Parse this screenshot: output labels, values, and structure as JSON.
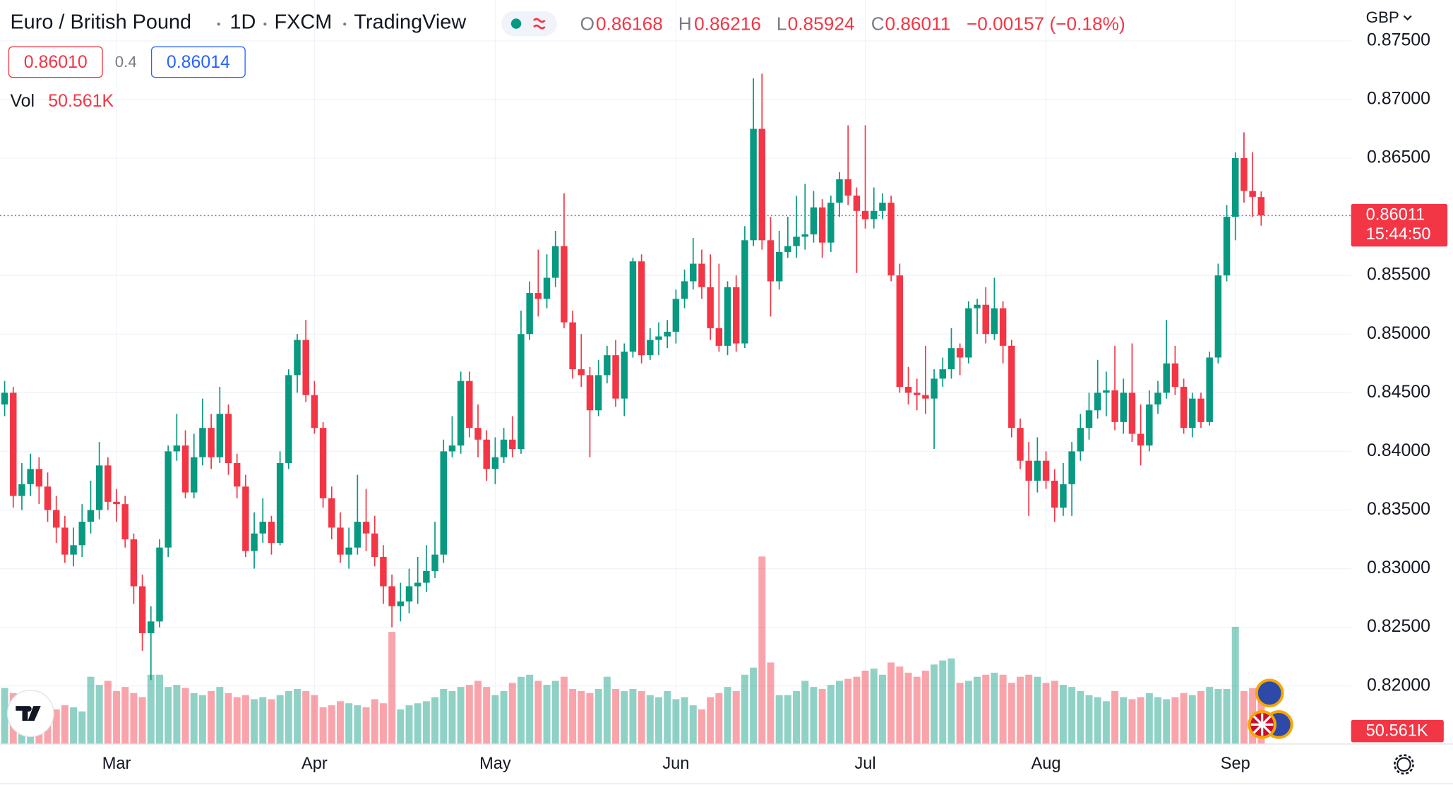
{
  "header": {
    "symbol": "Euro / British Pound",
    "interval": "1D",
    "exchange": "FXCM",
    "source": "TradingView",
    "ohlc_letters": [
      "O",
      "H",
      "L",
      "C"
    ],
    "change": "−0.00157 (−0.18%)",
    "bid": "0.86010",
    "spread": "0.4",
    "ask": "0.86014",
    "currency": "GBP"
  },
  "chart_data": {
    "type": "candlestick",
    "up_color": "#089981",
    "down_color": "#f23645",
    "volume_up_color": "rgba(8,153,129,0.45)",
    "volume_down_color": "rgba(242,54,69,0.45)",
    "grid": true,
    "countdown": "15:44:50",
    "categories": [
      null,
      null,
      null,
      null,
      null,
      null,
      null,
      null,
      null,
      null,
      null,
      null,
      null,
      "Mar",
      null,
      null,
      null,
      null,
      null,
      null,
      null,
      null,
      null,
      null,
      null,
      null,
      null,
      null,
      null,
      null,
      null,
      null,
      null,
      null,
      null,
      null,
      "Apr",
      null,
      null,
      null,
      null,
      null,
      null,
      null,
      null,
      null,
      null,
      null,
      null,
      null,
      null,
      null,
      null,
      null,
      null,
      null,
      null,
      "May",
      null,
      null,
      null,
      null,
      null,
      null,
      null,
      null,
      null,
      null,
      null,
      null,
      null,
      null,
      null,
      null,
      null,
      null,
      null,
      null,
      "Jun",
      null,
      null,
      null,
      null,
      null,
      null,
      null,
      null,
      null,
      null,
      null,
      null,
      null,
      null,
      null,
      null,
      null,
      null,
      null,
      null,
      null,
      "Jul",
      null,
      null,
      null,
      null,
      null,
      null,
      null,
      null,
      null,
      null,
      null,
      null,
      null,
      null,
      null,
      null,
      null,
      null,
      null,
      null,
      "Aug",
      null,
      null,
      null,
      null,
      null,
      null,
      null,
      null,
      null,
      null,
      null,
      null,
      null,
      null,
      null,
      null,
      null,
      null,
      null,
      null,
      null,
      "Sep",
      null,
      null,
      null
    ],
    "open": [
      0.844,
      0.845,
      0.8362,
      0.8372,
      0.8385,
      0.837,
      0.835,
      0.8335,
      0.8312,
      0.832,
      0.834,
      0.835,
      0.8388,
      0.8357,
      0.8355,
      0.8325,
      0.8285,
      0.8245,
      0.8255,
      0.8318,
      0.84,
      0.8405,
      0.8365,
      0.8395,
      0.842,
      0.8395,
      0.8432,
      0.839,
      0.837,
      0.8315,
      0.833,
      0.834,
      0.8322,
      0.839,
      0.8465,
      0.8495,
      0.8448,
      0.842,
      0.836,
      0.8335,
      0.8312,
      0.8318,
      0.834,
      0.833,
      0.831,
      0.8285,
      0.8268,
      0.8272,
      0.8285,
      0.8288,
      0.8298,
      0.8312,
      0.84,
      0.8405,
      0.846,
      0.842,
      0.841,
      0.8385,
      0.8395,
      0.841,
      0.8402,
      0.85,
      0.8535,
      0.853,
      0.8548,
      0.8575,
      0.851,
      0.847,
      0.8465,
      0.8435,
      0.8465,
      0.8482,
      0.8445,
      0.8485,
      0.8562,
      0.8482,
      0.8495,
      0.8498,
      0.8502,
      0.853,
      0.8545,
      0.856,
      0.854,
      0.8505,
      0.849,
      0.854,
      0.8492,
      0.858,
      0.8675,
      0.858,
      0.8545,
      0.857,
      0.8575,
      0.8583,
      0.8585,
      0.8608,
      0.8578,
      0.8612,
      0.8632,
      0.8618,
      0.8605,
      0.8598,
      0.8605,
      0.8612,
      0.855,
      0.8455,
      0.845,
      0.8448,
      0.8445,
      0.8462,
      0.847,
      0.8488,
      0.848,
      0.8522,
      0.8525,
      0.85,
      0.8522,
      0.849,
      0.842,
      0.8392,
      0.8375,
      0.8392,
      0.8375,
      0.8352,
      0.8372,
      0.84,
      0.842,
      0.8435,
      0.845,
      0.8452,
      0.8425,
      0.845,
      0.8415,
      0.8405,
      0.844,
      0.845,
      0.8475,
      0.8455,
      0.842,
      0.8445,
      0.8425,
      0.848,
      0.855,
      0.86,
      0.865,
      0.8622,
      0.86168
    ],
    "high": [
      0.846,
      0.8455,
      0.839,
      0.8398,
      0.8395,
      0.8382,
      0.8362,
      0.8345,
      0.8335,
      0.8355,
      0.8375,
      0.8408,
      0.8395,
      0.8368,
      0.8362,
      0.833,
      0.8295,
      0.8268,
      0.8325,
      0.8405,
      0.8432,
      0.8418,
      0.8415,
      0.8445,
      0.8432,
      0.8455,
      0.844,
      0.8398,
      0.838,
      0.8348,
      0.836,
      0.8345,
      0.84,
      0.847,
      0.85,
      0.8512,
      0.846,
      0.8425,
      0.837,
      0.8348,
      0.8335,
      0.838,
      0.8368,
      0.8345,
      0.832,
      0.8295,
      0.8288,
      0.83,
      0.831,
      0.832,
      0.834,
      0.841,
      0.843,
      0.8468,
      0.8468,
      0.844,
      0.8418,
      0.8412,
      0.842,
      0.843,
      0.852,
      0.8545,
      0.8572,
      0.8568,
      0.8588,
      0.862,
      0.852,
      0.85,
      0.8472,
      0.8478,
      0.849,
      0.8495,
      0.8492,
      0.8565,
      0.8568,
      0.8505,
      0.851,
      0.8512,
      0.8538,
      0.8555,
      0.8582,
      0.8572,
      0.8568,
      0.856,
      0.8545,
      0.855,
      0.8592,
      0.8718,
      0.8722,
      0.86,
      0.8588,
      0.86,
      0.8618,
      0.8628,
      0.8622,
      0.8615,
      0.8618,
      0.8638,
      0.8678,
      0.8625,
      0.8678,
      0.8625,
      0.862,
      0.8618,
      0.856,
      0.8472,
      0.8462,
      0.849,
      0.847,
      0.848,
      0.8505,
      0.8492,
      0.8528,
      0.853,
      0.854,
      0.8548,
      0.8528,
      0.8495,
      0.8428,
      0.8408,
      0.8412,
      0.84,
      0.8385,
      0.839,
      0.8408,
      0.8432,
      0.845,
      0.8478,
      0.8468,
      0.849,
      0.8462,
      0.8492,
      0.844,
      0.8452,
      0.846,
      0.8512,
      0.849,
      0.8462,
      0.845,
      0.845,
      0.8485,
      0.856,
      0.861,
      0.8655,
      0.8672,
      0.8655,
      0.86216
    ],
    "low": [
      0.843,
      0.8352,
      0.835,
      0.8362,
      0.8355,
      0.834,
      0.8322,
      0.8305,
      0.8302,
      0.831,
      0.833,
      0.8342,
      0.835,
      0.834,
      0.8318,
      0.827,
      0.823,
      0.8205,
      0.825,
      0.831,
      0.8392,
      0.836,
      0.836,
      0.8388,
      0.8385,
      0.839,
      0.838,
      0.836,
      0.831,
      0.83,
      0.8322,
      0.8312,
      0.832,
      0.8385,
      0.845,
      0.8442,
      0.8415,
      0.8352,
      0.8325,
      0.8305,
      0.83,
      0.8312,
      0.8315,
      0.8302,
      0.827,
      0.825,
      0.8255,
      0.8262,
      0.827,
      0.828,
      0.8292,
      0.8305,
      0.8395,
      0.8398,
      0.8412,
      0.8395,
      0.8375,
      0.8372,
      0.839,
      0.8395,
      0.8398,
      0.8495,
      0.8515,
      0.8522,
      0.854,
      0.8505,
      0.8462,
      0.8455,
      0.8395,
      0.843,
      0.8458,
      0.8438,
      0.843,
      0.848,
      0.8475,
      0.8478,
      0.8482,
      0.8488,
      0.8492,
      0.8522,
      0.8538,
      0.853,
      0.8495,
      0.8485,
      0.8482,
      0.8485,
      0.8488,
      0.8575,
      0.8572,
      0.8515,
      0.8538,
      0.8565,
      0.8565,
      0.8572,
      0.8578,
      0.8565,
      0.857,
      0.86,
      0.861,
      0.8552,
      0.859,
      0.859,
      0.8598,
      0.8545,
      0.845,
      0.844,
      0.8435,
      0.8432,
      0.8402,
      0.8455,
      0.8462,
      0.8465,
      0.8475,
      0.85,
      0.8492,
      0.8495,
      0.8475,
      0.8412,
      0.8385,
      0.8345,
      0.8365,
      0.8368,
      0.834,
      0.8345,
      0.8345,
      0.8392,
      0.841,
      0.8428,
      0.843,
      0.8418,
      0.8415,
      0.8408,
      0.8388,
      0.84,
      0.8432,
      0.8445,
      0.8448,
      0.8415,
      0.8412,
      0.842,
      0.8422,
      0.8475,
      0.8545,
      0.858,
      0.8612,
      0.86,
      0.85924
    ],
    "close": [
      0.845,
      0.8362,
      0.8372,
      0.8385,
      0.837,
      0.835,
      0.8335,
      0.8312,
      0.832,
      0.834,
      0.835,
      0.8388,
      0.8357,
      0.8355,
      0.8325,
      0.8285,
      0.8245,
      0.8255,
      0.8318,
      0.84,
      0.8405,
      0.8365,
      0.8395,
      0.842,
      0.8395,
      0.8432,
      0.839,
      0.837,
      0.8315,
      0.833,
      0.834,
      0.8322,
      0.839,
      0.8465,
      0.8495,
      0.8448,
      0.842,
      0.836,
      0.8335,
      0.8312,
      0.8318,
      0.834,
      0.833,
      0.831,
      0.8285,
      0.8268,
      0.8272,
      0.8285,
      0.8288,
      0.8298,
      0.8312,
      0.84,
      0.8405,
      0.846,
      0.842,
      0.841,
      0.8385,
      0.8395,
      0.841,
      0.8402,
      0.85,
      0.8535,
      0.853,
      0.8548,
      0.8575,
      0.851,
      0.847,
      0.8465,
      0.8435,
      0.8465,
      0.8482,
      0.8445,
      0.8485,
      0.8562,
      0.8482,
      0.8495,
      0.8498,
      0.8502,
      0.853,
      0.8545,
      0.856,
      0.854,
      0.8505,
      0.849,
      0.854,
      0.8492,
      0.858,
      0.8675,
      0.858,
      0.8545,
      0.857,
      0.8575,
      0.8583,
      0.8585,
      0.8608,
      0.8578,
      0.8612,
      0.8632,
      0.8618,
      0.8605,
      0.8598,
      0.8605,
      0.8612,
      0.855,
      0.8455,
      0.845,
      0.8448,
      0.8445,
      0.8462,
      0.847,
      0.8488,
      0.848,
      0.8522,
      0.8525,
      0.85,
      0.8522,
      0.849,
      0.842,
      0.8392,
      0.8375,
      0.8392,
      0.8375,
      0.8352,
      0.8372,
      0.84,
      0.842,
      0.8435,
      0.845,
      0.8452,
      0.8425,
      0.845,
      0.8415,
      0.8405,
      0.844,
      0.845,
      0.8475,
      0.8455,
      0.842,
      0.8445,
      0.8425,
      0.848,
      0.855,
      0.86,
      0.865,
      0.8622,
      0.8617,
      0.86011
    ],
    "volume": {
      "name": "Vol",
      "values": [
        55000,
        50000,
        42000,
        38000,
        40000,
        36000,
        34000,
        38000,
        36000,
        32000,
        66000,
        58000,
        62000,
        52000,
        56000,
        50000,
        46000,
        68000,
        68000,
        56000,
        58000,
        55000,
        50000,
        48000,
        52000,
        56000,
        50000,
        46000,
        48000,
        44000,
        46000,
        44000,
        48000,
        52000,
        54000,
        52000,
        48000,
        36000,
        38000,
        42000,
        40000,
        38000,
        36000,
        44000,
        40000,
        110000,
        34000,
        38000,
        40000,
        42000,
        46000,
        54000,
        52000,
        56000,
        58000,
        62000,
        56000,
        48000,
        52000,
        60000,
        66000,
        68000,
        62000,
        58000,
        62000,
        66000,
        54000,
        52000,
        50000,
        54000,
        66000,
        54000,
        52000,
        54000,
        52000,
        48000,
        46000,
        52000,
        44000,
        46000,
        38000,
        34000,
        46000,
        50000,
        56000,
        52000,
        68000,
        75000,
        184000,
        80000,
        48000,
        48000,
        52000,
        62000,
        56000,
        54000,
        58000,
        62000,
        64000,
        66000,
        72000,
        74000,
        68000,
        80000,
        76000,
        70000,
        66000,
        72000,
        78000,
        82000,
        84000,
        60000,
        62000,
        66000,
        68000,
        70000,
        68000,
        60000,
        66000,
        68000,
        66000,
        60000,
        62000,
        58000,
        56000,
        52000,
        48000,
        46000,
        42000,
        52000,
        46000,
        44000,
        46000,
        50000,
        46000,
        44000,
        46000,
        50000,
        48000,
        52000,
        56000,
        54000,
        54000,
        115000,
        52000,
        55000,
        50561
      ],
      "value_labels": [
        null,
        null,
        null,
        null,
        null,
        null,
        null,
        null,
        null,
        null,
        null,
        null,
        null,
        null,
        null,
        null,
        null,
        null,
        null,
        null,
        null,
        null,
        null,
        null,
        null,
        null,
        null,
        null,
        null,
        null,
        null,
        null,
        null,
        null,
        null,
        null,
        null,
        null,
        null,
        null,
        null,
        null,
        null,
        null,
        null,
        null,
        null,
        null,
        null,
        null,
        null,
        null,
        null,
        null,
        null,
        null,
        null,
        null,
        null,
        null,
        null,
        null,
        null,
        null,
        null,
        null,
        null,
        null,
        null,
        null,
        null,
        null,
        null,
        null,
        null,
        null,
        null,
        null,
        null,
        null,
        null,
        null,
        null,
        null,
        null,
        null,
        null,
        null,
        null,
        null,
        null,
        null,
        null,
        null,
        null,
        null,
        null,
        null,
        null,
        null,
        null,
        null,
        null,
        null,
        null,
        null,
        null,
        null,
        null,
        null,
        null,
        null,
        null,
        null,
        null,
        null,
        null,
        null,
        null,
        null,
        null,
        null,
        null,
        null,
        null,
        null,
        null,
        null,
        null,
        null,
        null,
        null,
        null,
        null,
        null,
        null,
        null,
        null,
        null,
        null,
        null,
        null,
        null,
        null,
        null,
        null,
        "50.561K"
      ]
    },
    "ylim": [
      0.81505,
      0.87848
    ],
    "yticks": [
      {
        "value": 0.875,
        "label": "0.87500"
      },
      {
        "value": 0.87,
        "label": "0.87000"
      },
      {
        "value": 0.865,
        "label": "0.86500"
      },
      {
        "value": 0.86,
        "label": "0.86000"
      },
      {
        "value": 0.855,
        "label": "0.85500"
      },
      {
        "value": 0.85,
        "label": "0.85000"
      },
      {
        "value": 0.845,
        "label": "0.84500"
      },
      {
        "value": 0.84,
        "label": "0.84000"
      },
      {
        "value": 0.835,
        "label": "0.83500"
      },
      {
        "value": 0.83,
        "label": "0.83000"
      },
      {
        "value": 0.825,
        "label": "0.82500"
      },
      {
        "value": 0.82,
        "label": "0.82000"
      }
    ]
  }
}
